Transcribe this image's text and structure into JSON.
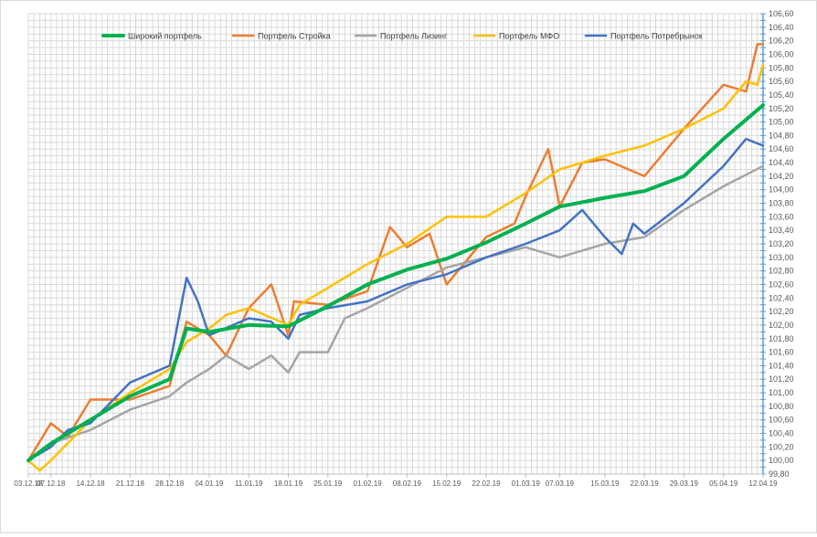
{
  "chart_data": {
    "type": "line",
    "title": "",
    "xlabel": "",
    "ylabel": "",
    "ylim": [
      99.8,
      106.6
    ],
    "y_tick_step": 0.1,
    "y_label_step": 0.2,
    "y_axis_side": "right",
    "grid": true,
    "legend_position": "top",
    "x_tick_labels": [
      "03.12.18",
      "07.12.18",
      "14.12.18",
      "21.12.18",
      "28.12.18",
      "04.01.19",
      "11.01.19",
      "18.01.19",
      "25.01.19",
      "01.02.19",
      "08.02.19",
      "15.02.19",
      "22.02.19",
      "01.03.19",
      "07.03.19",
      "15.03.19",
      "22.03.19",
      "29.03.19",
      "05.04.19",
      "12.04.19"
    ],
    "series": [
      {
        "name": "Широкий портфель",
        "color": "#00b050",
        "width": 4,
        "points": [
          [
            "03.12.18",
            100.0
          ],
          [
            "07.12.18",
            100.25
          ],
          [
            "14.12.18",
            100.6
          ],
          [
            "21.12.18",
            100.95
          ],
          [
            "28.12.18",
            101.2
          ],
          [
            "31.12.18",
            101.95
          ],
          [
            "04.01.19",
            101.9
          ],
          [
            "11.01.19",
            102.0
          ],
          [
            "18.01.19",
            101.98
          ],
          [
            "25.01.19",
            102.28
          ],
          [
            "01.02.19",
            102.6
          ],
          [
            "08.02.19",
            102.82
          ],
          [
            "15.02.19",
            102.98
          ],
          [
            "22.02.19",
            103.22
          ],
          [
            "01.03.19",
            103.5
          ],
          [
            "07.03.19",
            103.75
          ],
          [
            "15.03.19",
            103.88
          ],
          [
            "22.03.19",
            103.98
          ],
          [
            "29.03.19",
            104.2
          ],
          [
            "05.04.19",
            104.75
          ],
          [
            "12.04.19",
            105.25
          ]
        ]
      },
      {
        "name": "Портфель Стройка",
        "color": "#ed7d31",
        "width": 2.5,
        "points": [
          [
            "03.12.18",
            100.0
          ],
          [
            "07.12.18",
            100.55
          ],
          [
            "10.12.18",
            100.35
          ],
          [
            "14.12.18",
            100.9
          ],
          [
            "21.12.18",
            100.9
          ],
          [
            "28.12.18",
            101.1
          ],
          [
            "31.12.18",
            102.05
          ],
          [
            "04.01.19",
            101.85
          ],
          [
            "07.01.19",
            101.55
          ],
          [
            "11.01.19",
            102.25
          ],
          [
            "15.01.19",
            102.6
          ],
          [
            "18.01.19",
            101.85
          ],
          [
            "19.01.19",
            102.35
          ],
          [
            "25.01.19",
            102.3
          ],
          [
            "01.02.19",
            102.5
          ],
          [
            "05.02.19",
            103.45
          ],
          [
            "08.02.19",
            103.15
          ],
          [
            "12.02.19",
            103.35
          ],
          [
            "15.02.19",
            102.6
          ],
          [
            "22.02.19",
            103.3
          ],
          [
            "27.02.19",
            103.5
          ],
          [
            "01.03.19",
            103.9
          ],
          [
            "05.03.19",
            104.6
          ],
          [
            "07.03.19",
            103.75
          ],
          [
            "11.03.19",
            104.4
          ],
          [
            "15.03.19",
            104.45
          ],
          [
            "22.03.19",
            104.2
          ],
          [
            "29.03.19",
            104.9
          ],
          [
            "05.04.19",
            105.55
          ],
          [
            "09.04.19",
            105.45
          ],
          [
            "11.04.19",
            106.15
          ],
          [
            "12.04.19",
            106.15
          ]
        ]
      },
      {
        "name": "Портфель Лизинг",
        "color": "#a5a5a5",
        "width": 2.5,
        "points": [
          [
            "03.12.18",
            100.0
          ],
          [
            "07.12.18",
            100.25
          ],
          [
            "14.12.18",
            100.45
          ],
          [
            "21.12.18",
            100.75
          ],
          [
            "28.12.18",
            100.95
          ],
          [
            "31.12.18",
            101.15
          ],
          [
            "04.01.19",
            101.35
          ],
          [
            "07.01.19",
            101.55
          ],
          [
            "11.01.19",
            101.35
          ],
          [
            "15.01.19",
            101.55
          ],
          [
            "18.01.19",
            101.3
          ],
          [
            "20.01.19",
            101.6
          ],
          [
            "25.01.19",
            101.6
          ],
          [
            "28.01.19",
            102.1
          ],
          [
            "01.02.19",
            102.25
          ],
          [
            "08.02.19",
            102.55
          ],
          [
            "15.02.19",
            102.85
          ],
          [
            "22.02.19",
            103.0
          ],
          [
            "01.03.19",
            103.15
          ],
          [
            "07.03.19",
            103.0
          ],
          [
            "15.03.19",
            103.2
          ],
          [
            "22.03.19",
            103.3
          ],
          [
            "29.03.19",
            103.7
          ],
          [
            "05.04.19",
            104.05
          ],
          [
            "12.04.19",
            104.35
          ]
        ]
      },
      {
        "name": "Портфель МФО",
        "color": "#ffc000",
        "width": 2.5,
        "points": [
          [
            "03.12.18",
            100.0
          ],
          [
            "05.12.18",
            99.85
          ],
          [
            "07.12.18",
            100.0
          ],
          [
            "14.12.18",
            100.6
          ],
          [
            "21.12.18",
            101.0
          ],
          [
            "28.12.18",
            101.35
          ],
          [
            "31.12.18",
            101.75
          ],
          [
            "04.01.19",
            101.95
          ],
          [
            "07.01.19",
            102.15
          ],
          [
            "11.01.19",
            102.25
          ],
          [
            "18.01.19",
            102.0
          ],
          [
            "20.01.19",
            102.3
          ],
          [
            "25.01.19",
            102.55
          ],
          [
            "01.02.19",
            102.9
          ],
          [
            "08.02.19",
            103.2
          ],
          [
            "15.02.19",
            103.6
          ],
          [
            "22.02.19",
            103.6
          ],
          [
            "01.03.19",
            103.95
          ],
          [
            "07.03.19",
            104.3
          ],
          [
            "15.03.19",
            104.5
          ],
          [
            "22.03.19",
            104.65
          ],
          [
            "29.03.19",
            104.9
          ],
          [
            "05.04.19",
            105.2
          ],
          [
            "09.04.19",
            105.6
          ],
          [
            "11.04.19",
            105.55
          ],
          [
            "12.04.19",
            105.85
          ]
        ]
      },
      {
        "name": "Портфель Потребрынок",
        "color": "#4472c4",
        "width": 2.5,
        "points": [
          [
            "03.12.18",
            100.0
          ],
          [
            "07.12.18",
            100.2
          ],
          [
            "10.12.18",
            100.45
          ],
          [
            "14.12.18",
            100.55
          ],
          [
            "21.12.18",
            101.15
          ],
          [
            "28.12.18",
            101.4
          ],
          [
            "31.12.18",
            102.7
          ],
          [
            "02.01.19",
            102.35
          ],
          [
            "04.01.19",
            101.85
          ],
          [
            "11.01.19",
            102.1
          ],
          [
            "15.01.19",
            102.05
          ],
          [
            "18.01.19",
            101.8
          ],
          [
            "20.01.19",
            102.15
          ],
          [
            "25.01.19",
            102.25
          ],
          [
            "01.02.19",
            102.35
          ],
          [
            "08.02.19",
            102.6
          ],
          [
            "15.02.19",
            102.75
          ],
          [
            "22.02.19",
            103.0
          ],
          [
            "01.03.19",
            103.2
          ],
          [
            "07.03.19",
            103.4
          ],
          [
            "11.03.19",
            103.7
          ],
          [
            "15.03.19",
            103.3
          ],
          [
            "18.03.19",
            103.05
          ],
          [
            "20.03.19",
            103.5
          ],
          [
            "22.03.19",
            103.35
          ],
          [
            "29.03.19",
            103.8
          ],
          [
            "05.04.19",
            104.35
          ],
          [
            "09.04.19",
            104.75
          ],
          [
            "12.04.19",
            104.65
          ]
        ]
      }
    ]
  }
}
